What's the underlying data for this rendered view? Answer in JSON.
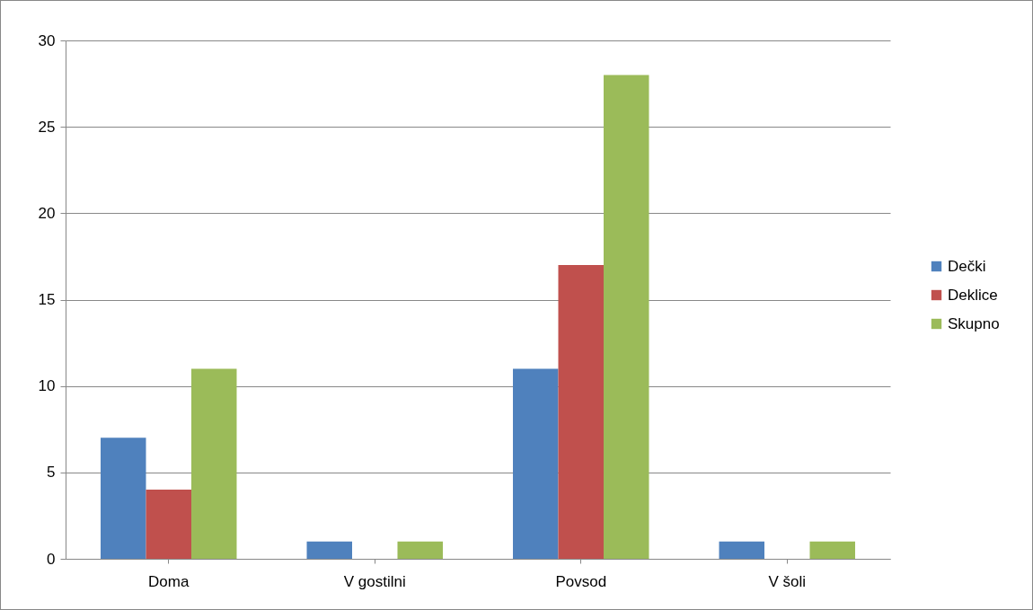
{
  "chart_data": {
    "type": "bar",
    "categories": [
      "Doma",
      "V gostilni",
      "Povsod",
      "V šoli"
    ],
    "series": [
      {
        "name": "Dečki",
        "color": "#4f81bd",
        "values": [
          7,
          1,
          11,
          1
        ]
      },
      {
        "name": "Deklice",
        "color": "#c0504d",
        "values": [
          4,
          0,
          17,
          0
        ]
      },
      {
        "name": "Skupno",
        "color": "#9bbb59",
        "values": [
          11,
          1,
          28,
          1
        ]
      }
    ],
    "ylim": [
      0,
      30
    ],
    "yticks": [
      0,
      5,
      10,
      15,
      20,
      25,
      30
    ],
    "grid": "y",
    "legend": "right"
  }
}
